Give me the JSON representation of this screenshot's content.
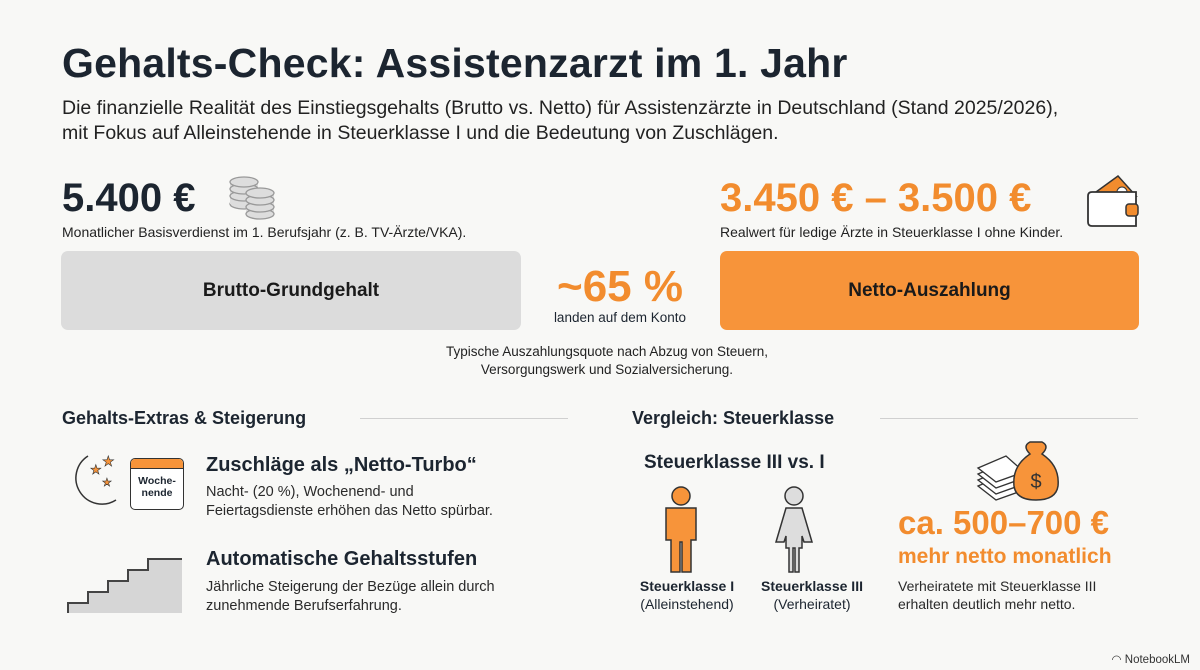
{
  "header": {
    "title": "Gehalts-Check: Assistenzarzt im 1. Jahr",
    "subtitle_line1": "Die finanzielle Realität des Einstiegsgehalts (Brutto vs. Netto) für Assistenzärzte in Deutschland (Stand 2025/2026),",
    "subtitle_line2": "mit Fokus auf Alleinstehende in Steuerklasse I und die Bedeutung von Zuschlägen."
  },
  "brutto": {
    "amount": "5.400 €",
    "caption": "Monatlicher Basisverdienst im 1. Berufsjahr (z. B. TV-Ärzte/VKA).",
    "box_label": "Brutto-Grundgehalt",
    "icon": "coins-icon"
  },
  "ratio": {
    "value": "~65 %",
    "caption": "landen auf dem Konto",
    "note_line1": "Typische Auszahlungsquote nach Abzug von Steuern,",
    "note_line2": "Versorgungswerk und Sozialversicherung."
  },
  "netto": {
    "amount": "3.450 € – 3.500 €",
    "caption": "Realwert für ledige Ärzte in Steuerklasse I ohne Kinder.",
    "box_label": "Netto-Auszahlung",
    "icon": "wallet-icon"
  },
  "extras": {
    "heading": "Gehalts-Extras & Steigerung",
    "items": [
      {
        "title": "Zuschläge als „Netto-Turbo“",
        "line1": "Nacht- (20 %), Wochenend- und",
        "line2": "Feiertagsdienste erhöhen das Netto spürbar.",
        "calendar_text1": "Woche-",
        "calendar_text2": "nende"
      },
      {
        "title": "Automatische Gehaltsstufen",
        "line1": "Jährliche Steigerung der Bezüge allein durch",
        "line2": "zunehmende Berufserfahrung."
      }
    ]
  },
  "comparison": {
    "heading": "Vergleich: Steuerklasse",
    "subheading": "Steuerklasse III vs. I",
    "persons": [
      {
        "label": "Steuerklasse I",
        "sub": "(Alleinstehend)"
      },
      {
        "label": "Steuerklasse III",
        "sub": "(Verheiratet)"
      }
    ],
    "amount": "ca. 500–700 €",
    "amount_sub": "mehr netto monatlich",
    "line1": "Verheiratete mit Steuerklasse III",
    "line2": "erhalten deutlich mehr netto."
  },
  "footer": {
    "brand": "NotebookLM"
  },
  "colors": {
    "accent": "#f28c2e",
    "gray_box": "#dcdcdc",
    "text": "#1c2530"
  }
}
